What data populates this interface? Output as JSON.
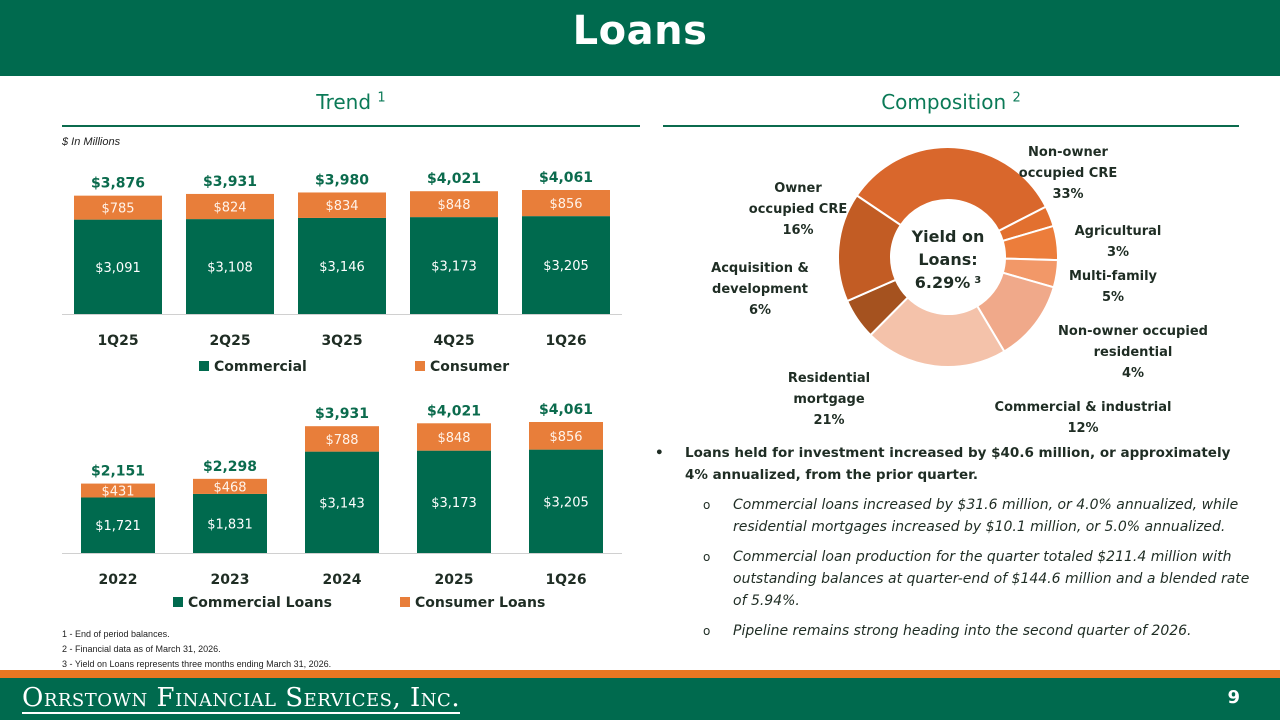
{
  "header": {
    "title": "Loans"
  },
  "trend": {
    "heading": "Trend",
    "sup": "1",
    "units": "$ In Millions"
  },
  "composition": {
    "heading": "Composition",
    "sup": "2"
  },
  "chart_data": [
    {
      "type": "bar",
      "stacked": true,
      "categories": [
        "1Q25",
        "2Q25",
        "3Q25",
        "4Q25",
        "1Q26"
      ],
      "series": [
        {
          "name": "Commercial",
          "color": "#006a4e",
          "values": [
            3091,
            3108,
            3146,
            3173,
            3205
          ],
          "labels": [
            "$3,091",
            "$3,108",
            "$3,146",
            "$3,173",
            "$3,205"
          ]
        },
        {
          "name": "Consumer",
          "color": "#e87e3a",
          "values": [
            785,
            824,
            834,
            848,
            856
          ],
          "labels": [
            "$785",
            "$824",
            "$834",
            "$848",
            "$856"
          ]
        }
      ],
      "totals": [
        "$3,876",
        "$3,931",
        "$3,980",
        "$4,021",
        "$4,061"
      ],
      "legend": "bottom"
    },
    {
      "type": "bar",
      "stacked": true,
      "categories": [
        "2022",
        "2023",
        "2024",
        "2025",
        "1Q26"
      ],
      "series": [
        {
          "name": "Commercial Loans",
          "color": "#006a4e",
          "values": [
            1721,
            1831,
            3143,
            3173,
            3205
          ],
          "labels": [
            "$1,721",
            "$1,831",
            "$3,143",
            "$3,173",
            "$3,205"
          ]
        },
        {
          "name": "Consumer Loans",
          "color": "#e87e3a",
          "values": [
            431,
            468,
            788,
            848,
            856
          ],
          "labels": [
            "$431",
            "$468",
            "$788",
            "$848",
            "$856"
          ]
        }
      ],
      "totals": [
        "$2,151",
        "$2,298",
        "$3,931",
        "$4,021",
        "$4,061"
      ],
      "legend": "bottom"
    },
    {
      "type": "pie",
      "donut": true,
      "center_text": [
        "Yield on",
        "Loans:",
        "6.29%"
      ],
      "center_sup": "3",
      "slices": [
        {
          "label": [
            "Non-owner",
            "occupied CRE",
            "33%"
          ],
          "value": 33,
          "color": "#d9672c"
        },
        {
          "label": [
            "Agricultural",
            "3%"
          ],
          "value": 3,
          "color": "#e2702f"
        },
        {
          "label": [
            "Multi-family",
            "5%"
          ],
          "value": 5,
          "color": "#ec7d3b"
        },
        {
          "label": [
            "Non-owner occupied",
            "residential",
            "4%"
          ],
          "value": 4,
          "color": "#f29868"
        },
        {
          "label": [
            "Commercial & industrial",
            "12%"
          ],
          "value": 12,
          "color": "#f0a98a"
        },
        {
          "label": [
            "Residential",
            "mortgage",
            "21%"
          ],
          "value": 21,
          "color": "#f4c2aa"
        },
        {
          "label": [
            "Acquisition &",
            "development",
            "6%"
          ],
          "value": 6,
          "color": "#a5521f"
        },
        {
          "label": [
            "Owner",
            "occupied CRE",
            "16%"
          ],
          "value": 16,
          "color": "#c25c24"
        }
      ]
    }
  ],
  "bullets": {
    "main": "Loans held for investment increased by $40.6 million, or approximately 4% annualized, from the prior quarter.",
    "subs": [
      "Commercial loans increased by $31.6 million, or 4.0% annualized, while residential mortgages increased by $10.1 million, or 5.0% annualized.",
      "Commercial loan production for the quarter totaled $211.4 million with outstanding balances at quarter-end of $144.6 million and a blended rate of 5.94%.",
      "Pipeline remains strong heading into the second quarter of 2026."
    ]
  },
  "footnotes": [
    "1 - End of period balances.",
    "2 - Financial data as of March 31, 2026.",
    "3 - Yield on Loans represents three months ending March 31, 2026."
  ],
  "footer": {
    "logo": "Orrstown Financial Services, Inc.",
    "page": "9"
  }
}
